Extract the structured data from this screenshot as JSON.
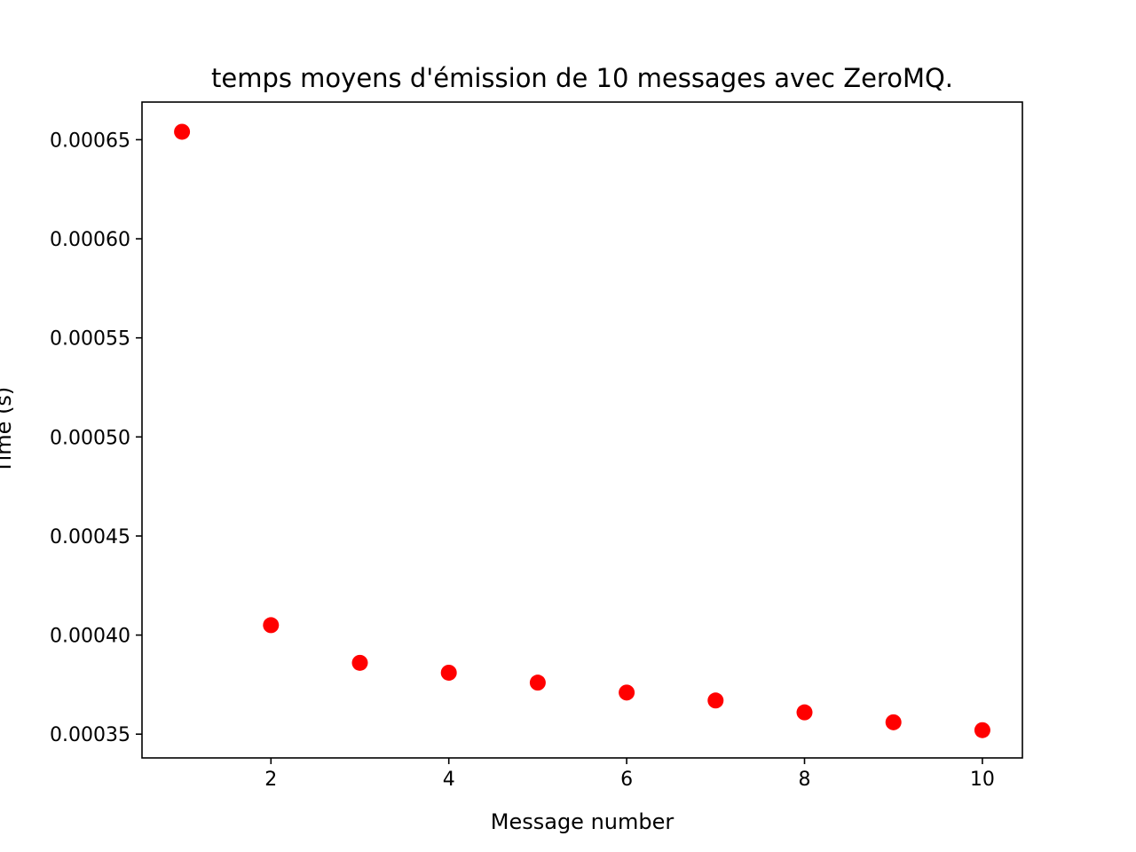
{
  "chart_data": {
    "type": "scatter",
    "title": "temps moyens d'émission de 10 messages avec ZeroMQ.",
    "xlabel": "Message number",
    "ylabel": "Time (s)",
    "xlim": [
      0.55,
      10.45
    ],
    "ylim": [
      0.000338,
      0.000669
    ],
    "xticks": [
      2,
      4,
      6,
      8,
      10
    ],
    "xtick_labels": [
      "2",
      "4",
      "6",
      "8",
      "10"
    ],
    "yticks": [
      0.00035,
      0.0004,
      0.00045,
      0.0005,
      0.00055,
      0.0006,
      0.00065
    ],
    "ytick_labels": [
      "0.00035",
      "0.00040",
      "0.00045",
      "0.00050",
      "0.00055",
      "0.00060",
      "0.00065"
    ],
    "grid": false,
    "series": [
      {
        "color": "#ff0000",
        "marker": "circle",
        "x": [
          1,
          2,
          3,
          4,
          5,
          6,
          7,
          8,
          9,
          10
        ],
        "y": [
          0.000654,
          0.000405,
          0.000386,
          0.000381,
          0.000376,
          0.000371,
          0.000367,
          0.000361,
          0.000356,
          0.000352
        ]
      }
    ]
  }
}
